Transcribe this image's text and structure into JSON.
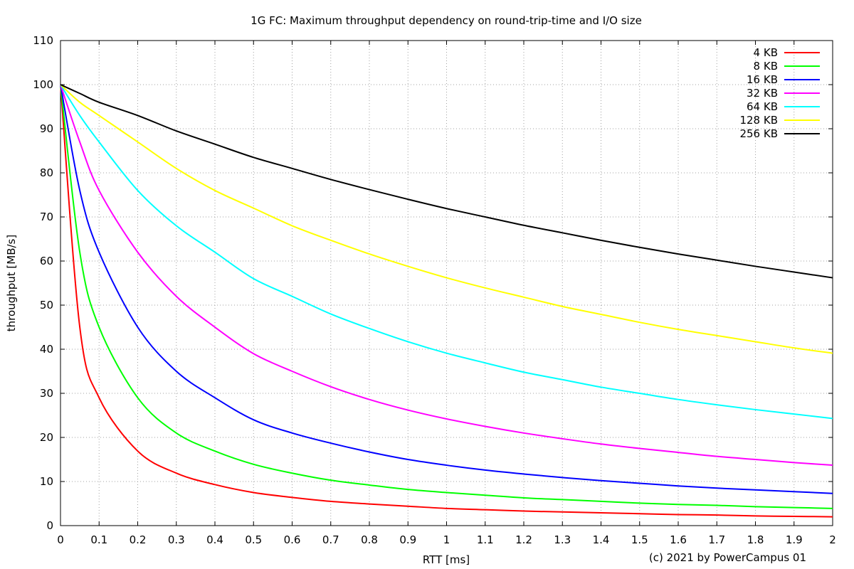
{
  "chart_data": {
    "type": "line",
    "title": "1G FC: Maximum throughput dependency on round-trip-time and I/O size",
    "xlabel": "RTT [ms]",
    "ylabel": "throughput [MB/s]",
    "credit": "(c) 2021 by PowerCampus 01",
    "xlim": [
      0,
      2
    ],
    "ylim": [
      0,
      110
    ],
    "x_ticks": [
      0,
      0.1,
      0.2,
      0.3,
      0.4,
      0.5,
      0.6,
      0.7,
      0.8,
      0.9,
      1,
      1.1,
      1.2,
      1.3,
      1.4,
      1.5,
      1.6,
      1.7,
      1.8,
      1.9,
      2
    ],
    "x_tick_labels": [
      "0",
      "0.1",
      "0.2",
      "0.3",
      "0.4",
      "0.5",
      "0.6",
      "0.7",
      "0.8",
      "0.9",
      "1",
      "1.1",
      "1.2",
      "1.3",
      "1.4",
      "1.5",
      "1.6",
      "1.7",
      "1.8",
      "1.9",
      "2"
    ],
    "y_ticks": [
      0,
      10,
      20,
      30,
      40,
      50,
      60,
      70,
      80,
      90,
      100,
      110
    ],
    "y_tick_labels": [
      "0",
      "10",
      "20",
      "30",
      "40",
      "50",
      "60",
      "70",
      "80",
      "90",
      "100",
      "110"
    ],
    "grid": true,
    "legend_position": "top-right",
    "x": [
      0,
      0.05,
      0.1,
      0.2,
      0.3,
      0.4,
      0.5,
      0.6,
      0.7,
      0.8,
      0.9,
      1.0,
      1.1,
      1.2,
      1.3,
      1.4,
      1.5,
      1.6,
      1.7,
      1.8,
      1.9,
      2.0
    ],
    "series": [
      {
        "name": "4 KB",
        "color": "#ff0000",
        "values": [
          100,
          45,
          29,
          16.9,
          11.9,
          9.3,
          7.5,
          6.4,
          5.5,
          4.9,
          4.4,
          3.9,
          3.6,
          3.3,
          3.1,
          2.9,
          2.7,
          2.5,
          2.4,
          2.2,
          2.1,
          2.0
        ]
      },
      {
        "name": "8 KB",
        "color": "#00ff00",
        "values": [
          100,
          62,
          45,
          29,
          21,
          16.9,
          13.9,
          11.9,
          10.3,
          9.2,
          8.2,
          7.5,
          6.9,
          6.3,
          5.9,
          5.5,
          5.1,
          4.8,
          4.6,
          4.3,
          4.1,
          3.9
        ]
      },
      {
        "name": "16 KB",
        "color": "#0000ff",
        "values": [
          100,
          76,
          62,
          45,
          35,
          29,
          24,
          21,
          18.7,
          16.7,
          15,
          13.7,
          12.6,
          11.7,
          10.9,
          10.2,
          9.6,
          9.0,
          8.5,
          8.1,
          7.7,
          7.3
        ]
      },
      {
        "name": "32 KB",
        "color": "#ff00ff",
        "values": [
          100,
          87,
          76,
          62,
          52,
          45,
          39,
          35,
          31.5,
          28.6,
          26.2,
          24.2,
          22.5,
          21,
          19.7,
          18.5,
          17.5,
          16.6,
          15.7,
          15,
          14.3,
          13.7
        ]
      },
      {
        "name": "64 KB",
        "color": "#00ffff",
        "values": [
          100,
          93,
          87,
          76,
          68,
          62,
          56,
          52,
          48,
          44.7,
          41.7,
          39.1,
          36.9,
          34.8,
          33.1,
          31.4,
          30,
          28.6,
          27.4,
          26.3,
          25.3,
          24.3
        ]
      },
      {
        "name": "128 KB",
        "color": "#ffff00",
        "values": [
          100,
          96,
          93,
          87,
          81,
          76,
          72,
          68,
          64.7,
          61.6,
          58.8,
          56.2,
          53.9,
          51.8,
          49.7,
          47.9,
          46.1,
          44.5,
          43.1,
          41.7,
          40.3,
          39.1
        ]
      },
      {
        "name": "256 KB",
        "color": "#000000",
        "values": [
          100,
          98,
          96,
          93,
          89.5,
          86.5,
          83.5,
          81,
          78.5,
          76.2,
          74,
          71.9,
          70,
          68.1,
          66.4,
          64.7,
          63.1,
          61.6,
          60.2,
          58.8,
          57.5,
          56.2
        ]
      }
    ]
  }
}
